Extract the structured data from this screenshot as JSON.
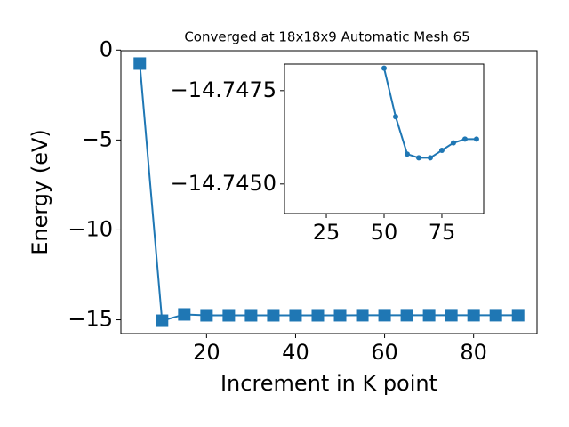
{
  "chart_data": [
    {
      "type": "line",
      "title": "Converged at 18x18x9 Automatic Mesh 65",
      "xlabel": "Increment in K point",
      "ylabel": "Energy (eV)",
      "marker": "square",
      "series": [
        {
          "color": "#1f77b4",
          "x": [
            5,
            10,
            15,
            20,
            25,
            30,
            35,
            40,
            45,
            50,
            55,
            60,
            65,
            70,
            75,
            80,
            85,
            90
          ],
          "values": [
            -0.75,
            -15.05,
            -14.7,
            -14.75,
            -14.75,
            -14.75,
            -14.75,
            -14.75,
            -14.75,
            -14.7481,
            -14.7468,
            -14.7458,
            -14.7457,
            -14.7457,
            -14.7459,
            -14.7461,
            -14.7462,
            -14.7462
          ]
        }
      ],
      "xlim": [
        0.75,
        94.25
      ],
      "xticks": [
        20,
        40,
        60,
        80
      ],
      "ylim": [
        -15.765,
        -0.035
      ],
      "yticks": [
        0,
        {
          "value": -5,
          "label": "−5"
        },
        {
          "value": -10,
          "label": "−10"
        },
        {
          "value": -15,
          "label": "−15"
        }
      ]
    },
    {
      "type": "line",
      "marker": "circle",
      "series": [
        {
          "color": "#1f77b4",
          "x": [
            50,
            55,
            60,
            65,
            70,
            75,
            80,
            85,
            90
          ],
          "values": [
            -14.7481,
            -14.7468,
            -14.7458,
            -14.7457,
            -14.7457,
            -14.7459,
            -14.7461,
            -14.7462,
            -14.7462
          ]
        }
      ],
      "xlim": [
        6.9,
        93.1
      ],
      "xticks": [
        25,
        50,
        75
      ],
      "ylim": [
        -14.74421,
        -14.74821
      ],
      "yticks": [
        {
          "value": -14.7475,
          "label": "−14.7475"
        },
        {
          "value": -14.745,
          "label": "−14.7450"
        }
      ]
    }
  ]
}
